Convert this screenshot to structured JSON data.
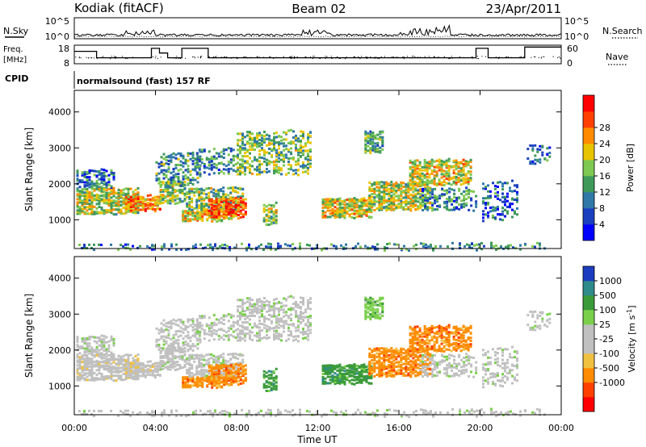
{
  "header": {
    "title": "Kodiak (fitACF)",
    "beam": "Beam 02",
    "date": "23/Apr/2011"
  },
  "panel_labels": {
    "nsky": "N.Sky",
    "nsearch": "N.Search",
    "freq_top": "Freq.",
    "freq_unit": "[MHz]",
    "nave": "Nave",
    "cpid": "CPID",
    "cpid_value": "normalsound (fast) 157 RF"
  },
  "colorbars": {
    "power": {
      "label": "Power [dB]",
      "ticks": [
        "4",
        "8",
        "12",
        "16",
        "20",
        "24",
        "28"
      ],
      "colors": [
        "#0000ff",
        "#1a3fbf",
        "#2f78a8",
        "#3f9a5a",
        "#7dc850",
        "#e8c400",
        "#ff8c00",
        "#ff4000",
        "#ff0000"
      ]
    },
    "velocity": {
      "label": "Velocity [m s",
      "label_sup": "-1",
      "label_close": "]",
      "ticks": [
        "1000",
        "500",
        "100",
        "25",
        "-25",
        "-100",
        "-500",
        "-1000"
      ],
      "colors": [
        "#1c3cc0",
        "#2f8a8a",
        "#3a9a3a",
        "#7ad04a",
        "#c0c0c0",
        "#c0c0c0",
        "#f0c040",
        "#ff8c00",
        "#ff4000",
        "#ff0000"
      ]
    }
  },
  "chart_data": [
    {
      "type": "line",
      "name": "noise",
      "yticks_left": [
        "10^5",
        "10^0"
      ],
      "yticks_right": [
        "10^5",
        "10^0"
      ],
      "x_range_hours": [
        0,
        24
      ]
    },
    {
      "type": "line",
      "name": "frequency-nave",
      "yticks_left": [
        "18",
        "8"
      ],
      "yticks_right": [
        "60",
        "0"
      ],
      "ylim_left": [
        8,
        18
      ],
      "ylim_right": [
        0,
        60
      ],
      "freq_steps": [
        {
          "x": 0,
          "y": 14.7
        },
        {
          "x": 1.1,
          "y": 11.2
        },
        {
          "x": 3.8,
          "y": 16.3
        },
        {
          "x": 4.2,
          "y": 13.8
        },
        {
          "x": 4.6,
          "y": 11.2
        },
        {
          "x": 5.3,
          "y": 16.3
        },
        {
          "x": 6.6,
          "y": 11.2
        },
        {
          "x": 19.8,
          "y": 16.3
        },
        {
          "x": 20.4,
          "y": 11.2
        },
        {
          "x": 22.2,
          "y": 17.0
        },
        {
          "x": 24,
          "y": 17.0
        }
      ]
    },
    {
      "type": "heatmap",
      "name": "power",
      "ylabel": "Slant Range [km]",
      "yticks": [
        "1000",
        "2000",
        "3000",
        "4000"
      ],
      "ylim": [
        200,
        4600
      ],
      "xlim": [
        0,
        24
      ]
    },
    {
      "type": "heatmap",
      "name": "velocity",
      "ylabel": "Slant Range [km]",
      "yticks": [
        "1000",
        "2000",
        "3000",
        "4000"
      ],
      "ylim": [
        200,
        4600
      ],
      "xlim": [
        0,
        24
      ],
      "xlabel": "Time UT",
      "xticks": [
        "00:00",
        "04:00",
        "08:00",
        "12:00",
        "16:00",
        "20:00",
        "00:00"
      ],
      "xtick_hours": [
        0,
        4,
        8,
        12,
        16,
        20,
        24
      ]
    }
  ]
}
